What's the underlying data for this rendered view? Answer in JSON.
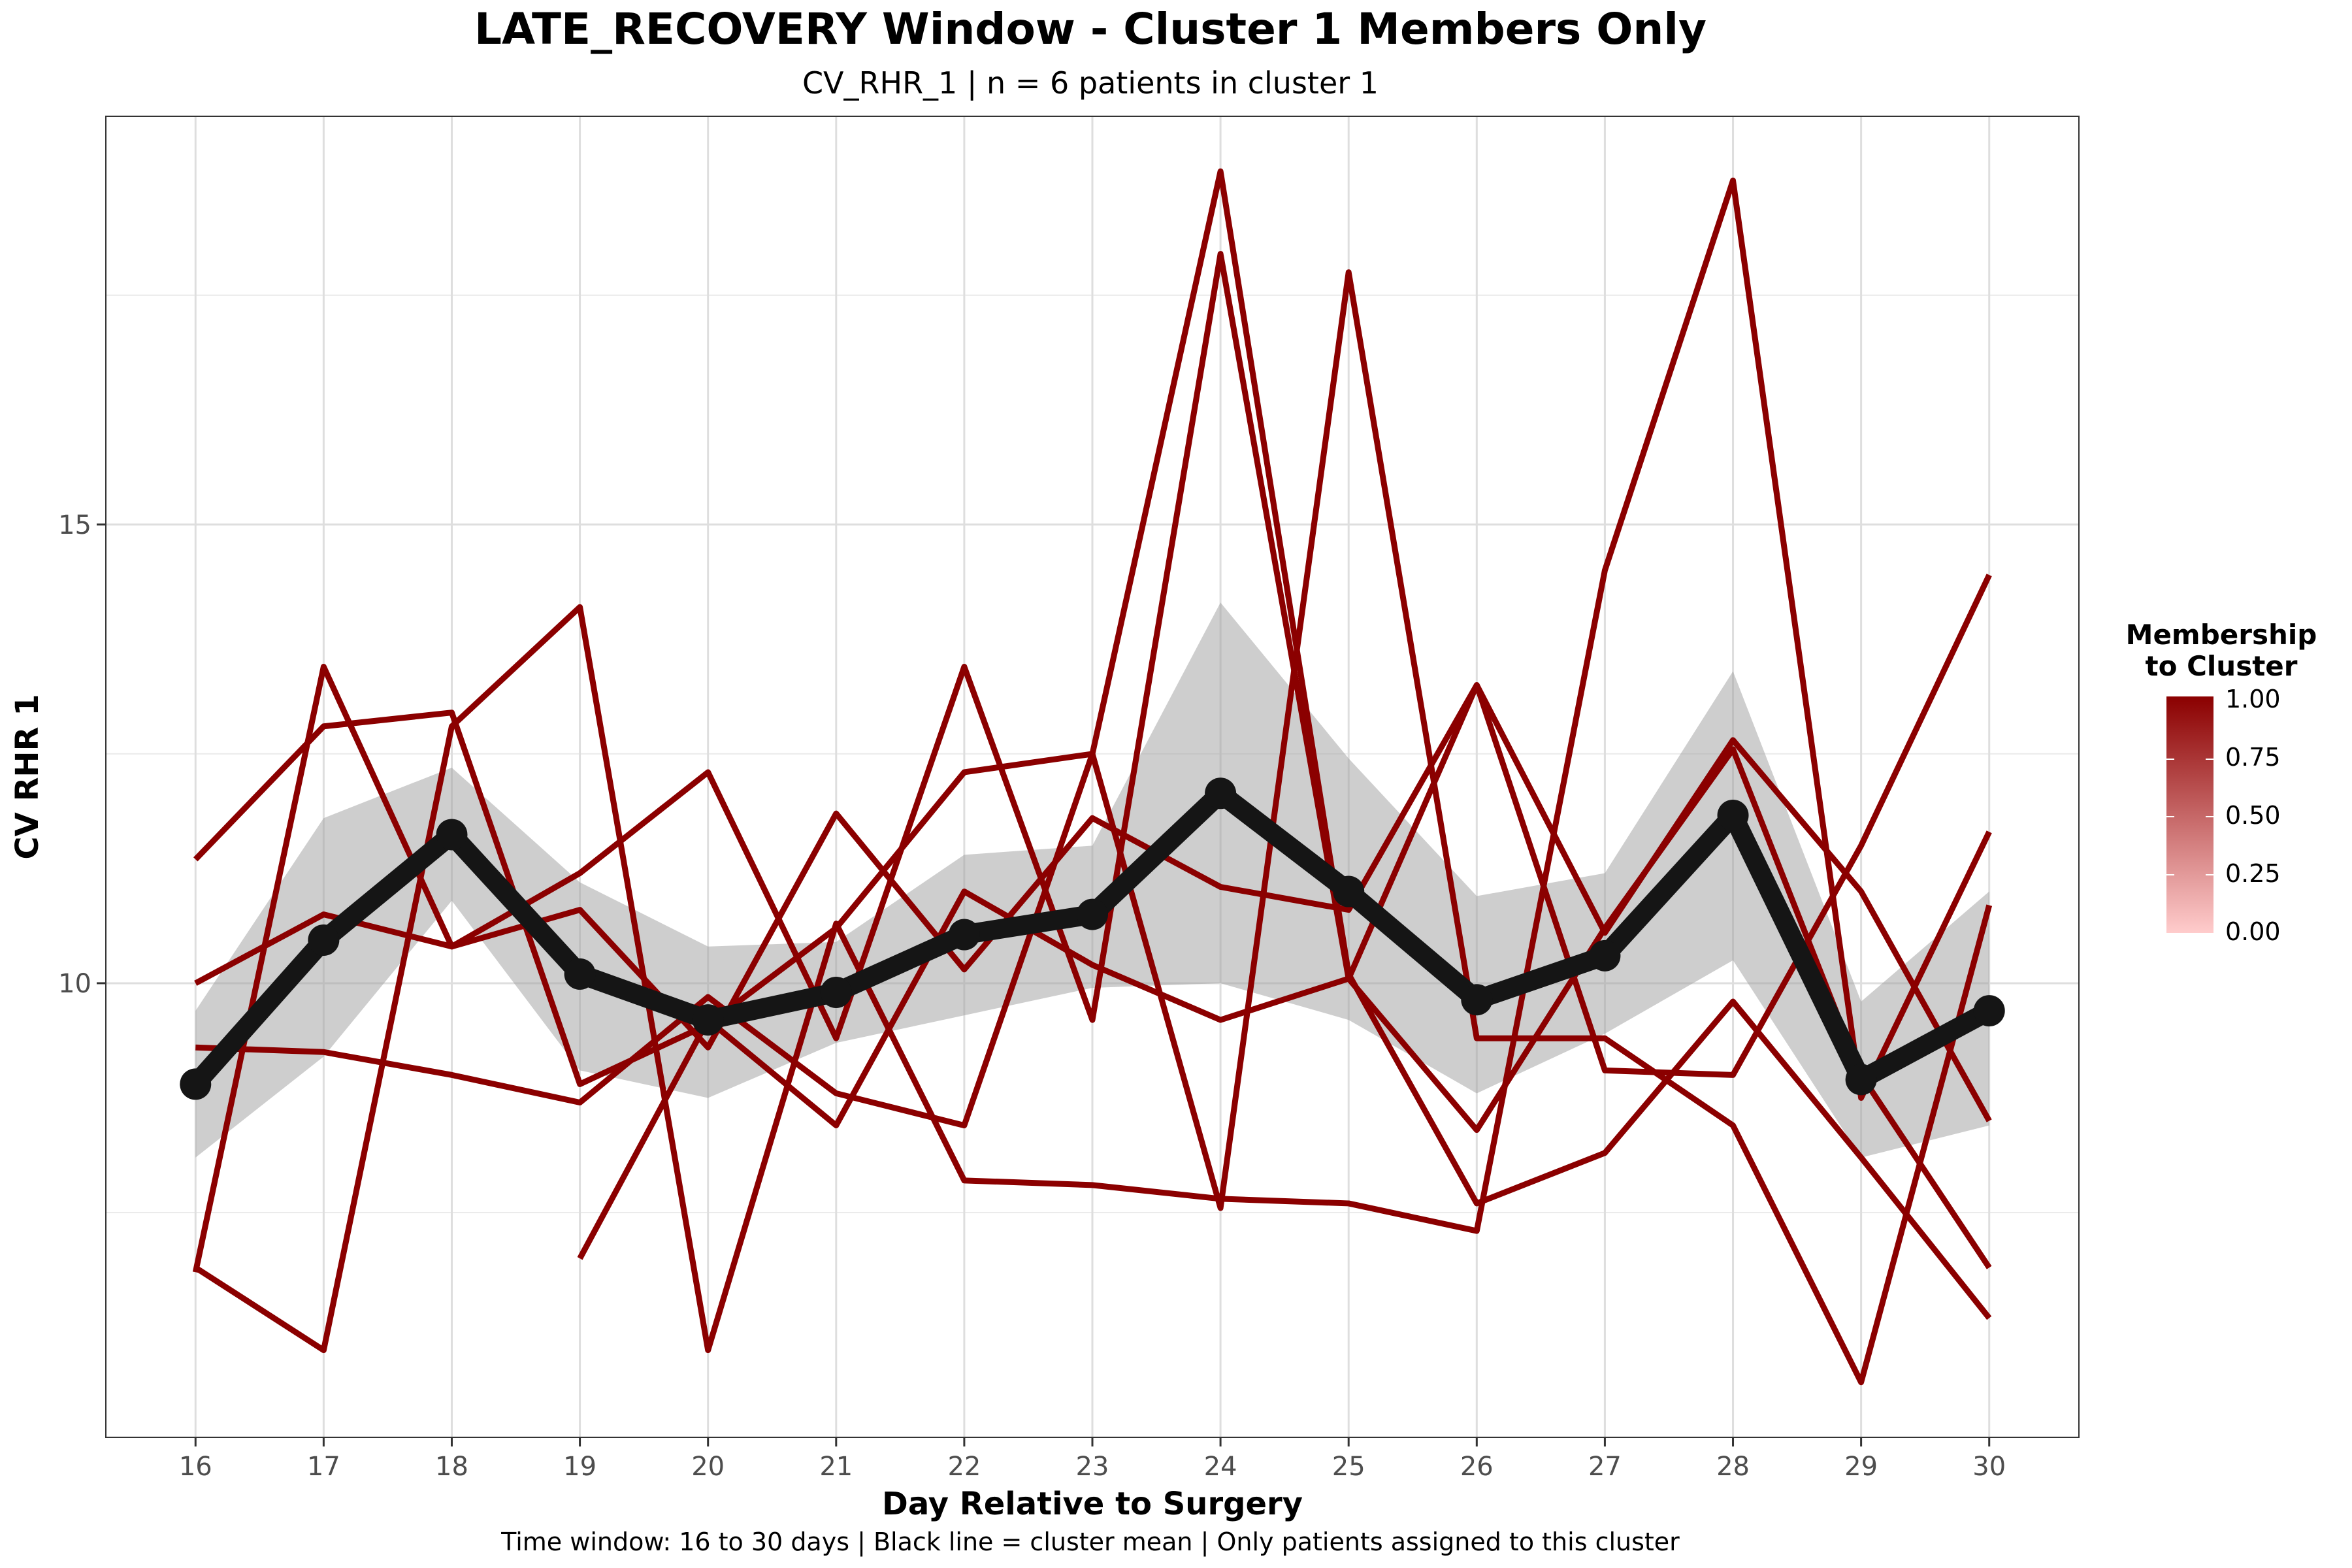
{
  "chart_data": {
    "type": "line",
    "title": "LATE_RECOVERY Window - Cluster 1 Members Only",
    "subtitle": "CV_RHR_1 | n = 6 patients in cluster 1",
    "xlabel": "Day Relative to Surgery",
    "ylabel": "CV RHR 1",
    "caption": "Time window: 16 to 30 days | Black line = cluster mean | Only patients assigned to this cluster",
    "x": [
      16,
      17,
      18,
      19,
      20,
      21,
      22,
      23,
      24,
      25,
      26,
      27,
      28,
      29,
      30
    ],
    "xlim": [
      15.3,
      30.7
    ],
    "ylim": [
      5.05,
      19.45
    ],
    "yticks": [
      10,
      15
    ],
    "grid": true,
    "legend": {
      "title_lines": [
        "Membership",
        "to Cluster"
      ],
      "labels": [
        "1.00",
        "0.75",
        "0.50",
        "0.25",
        "0.00"
      ],
      "position": "right",
      "colors": {
        "high": "#8b0000",
        "low": "#ffcccc"
      }
    },
    "series": [
      {
        "values": [
          11.35,
          12.8,
          12.95,
          8.9,
          9.55,
          10.6,
          12.3,
          12.5,
          18.85,
          10.1,
          7.6,
          8.15,
          9.8,
          8.1,
          6.35
        ]
      },
      {
        "values": [
          10.0,
          10.75,
          10.4,
          10.8,
          9.3,
          11.85,
          10.15,
          11.8,
          11.05,
          10.8,
          13.25,
          10.55,
          12.65,
          11.0,
          8.5
        ]
      },
      {
        "values": [
          9.3,
          9.25,
          9.0,
          8.7,
          9.85,
          8.8,
          8.45,
          12.5,
          7.55,
          17.75,
          9.4,
          9.4,
          8.45,
          5.65,
          10.85
        ]
      },
      {
        "values": [
          6.85,
          13.45,
          10.4,
          11.2,
          12.3,
          9.4,
          13.45,
          9.6,
          17.95,
          10.05,
          13.25,
          9.05,
          9.0,
          11.5,
          14.45
        ]
      },
      {
        "values": [
          6.9,
          6.0,
          12.8,
          14.1,
          6.0,
          10.65,
          7.85,
          7.8,
          7.65,
          7.6,
          7.3,
          14.5,
          18.75,
          8.75,
          11.65
        ]
      },
      {
        "values": [
          null,
          null,
          null,
          7.0,
          9.6,
          8.45,
          11.0,
          10.2,
          9.6,
          10.05,
          8.4,
          10.6,
          12.55,
          9.0,
          6.9
        ]
      }
    ],
    "mean": [
      8.9,
      10.47,
      11.62,
      10.1,
      9.6,
      9.9,
      10.53,
      10.75,
      12.07,
      11.0,
      9.82,
      10.3,
      11.83,
      8.95,
      9.7
    ],
    "ribbon_upper": [
      9.7,
      11.8,
      12.35,
      11.1,
      10.4,
      10.45,
      11.4,
      11.5,
      14.15,
      12.45,
      10.95,
      11.2,
      13.4,
      9.8,
      11.0
    ],
    "ribbon_lower": [
      8.1,
      9.2,
      10.9,
      9.05,
      8.75,
      9.35,
      9.65,
      9.95,
      10.0,
      9.6,
      8.8,
      9.45,
      10.25,
      8.1,
      8.45
    ]
  }
}
